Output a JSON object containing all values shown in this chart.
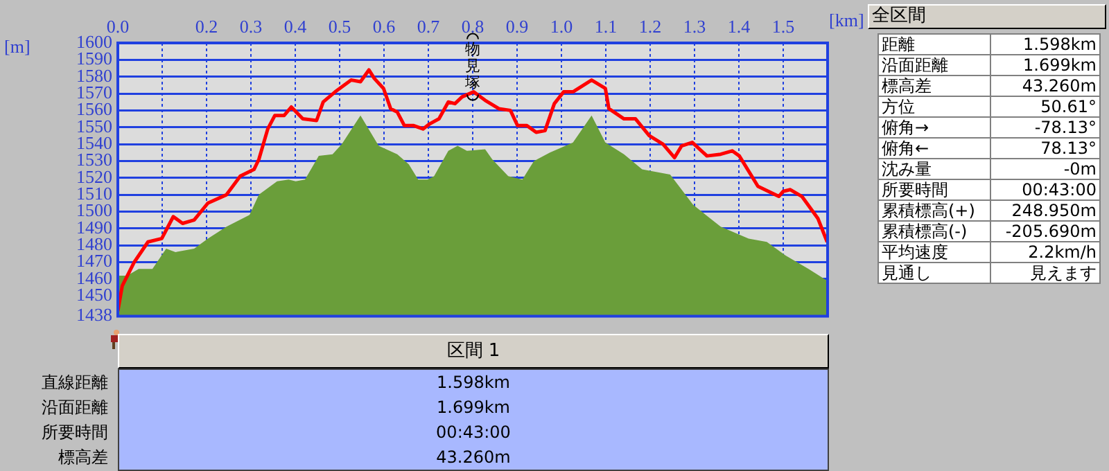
{
  "chart_data": [
    {
      "type": "line",
      "xlabel": "[km]",
      "ylabel": "[m]",
      "xlim": [
        0,
        1.6
      ],
      "xticks": [
        {
          "value": 0,
          "label": "0.0"
        },
        {
          "value": 0.1,
          "label": null
        },
        0.2,
        0.3,
        0.4,
        0.5,
        0.6,
        0.7,
        0.8,
        0.9,
        {
          "value": 1,
          "label": "1.0"
        },
        1.1,
        1.2,
        1.3,
        1.4,
        1.5
      ],
      "ylim": [
        1438,
        1600
      ],
      "yticks": [
        1438,
        1450,
        1460,
        1470,
        1480,
        1490,
        1500,
        1510,
        1520,
        1530,
        1540,
        1550,
        1560,
        1570,
        1580,
        1590,
        1600
      ],
      "grid": true,
      "legend": false,
      "line_style": "solid",
      "marker": "none",
      "annotations": [
        {
          "text": "物見塚",
          "x": 0.8,
          "y": 1571
        }
      ],
      "series": [
        {
          "type": "area",
          "color": "#6a9e3a",
          "x": [
            0,
            0.021,
            0.047,
            0.078,
            0.109,
            0.13,
            0.172,
            0.203,
            0.245,
            0.297,
            0.318,
            0.359,
            0.385,
            0.401,
            0.422,
            0.453,
            0.484,
            0.505,
            0.547,
            0.588,
            0.63,
            0.656,
            0.677,
            0.698,
            0.713,
            0.745,
            0.766,
            0.787,
            0.828,
            0.844,
            0.88,
            0.912,
            0.938,
            0.974,
            1.026,
            1.068,
            1.099,
            1.141,
            1.182,
            1.245,
            1.297,
            1.359,
            1.422,
            1.463,
            1.505,
            1.557,
            1.599
          ],
          "values": [
            1462,
            1462,
            1466,
            1466,
            1478,
            1476,
            1478,
            1484,
            1491,
            1498,
            1510,
            1518,
            1519,
            1518,
            1519,
            1533,
            1534,
            1540,
            1557,
            1539,
            1534,
            1528,
            1519,
            1519,
            1521,
            1536,
            1539,
            1536,
            1537,
            1531,
            1521,
            1519,
            1530,
            1535,
            1541,
            1557,
            1541,
            1534,
            1525,
            1522,
            1504,
            1491,
            1484,
            1482,
            1474,
            1466,
            1459
          ]
        },
        {
          "type": "line",
          "color": "#ff0000",
          "x": [
            0,
            0.01,
            0.037,
            0.068,
            0.099,
            0.125,
            0.146,
            0.172,
            0.203,
            0.245,
            0.276,
            0.307,
            0.318,
            0.338,
            0.354,
            0.375,
            0.391,
            0.417,
            0.448,
            0.463,
            0.49,
            0.526,
            0.547,
            0.566,
            0.578,
            0.599,
            0.615,
            0.63,
            0.646,
            0.667,
            0.688,
            0.703,
            0.724,
            0.745,
            0.76,
            0.776,
            0.802,
            0.828,
            0.859,
            0.885,
            0.901,
            0.922,
            0.943,
            0.963,
            0.984,
            1.005,
            1.026,
            1.068,
            1.099,
            1.107,
            1.141,
            1.167,
            1.198,
            1.229,
            1.255,
            1.271,
            1.295,
            1.328,
            1.359,
            1.385,
            1.401,
            1.443,
            1.49,
            1.5,
            1.516,
            1.542,
            1.578,
            1.599
          ],
          "values": [
            1441,
            1456,
            1470,
            1482,
            1484,
            1497,
            1493,
            1495,
            1505,
            1510,
            1521,
            1525,
            1531,
            1549,
            1557,
            1557,
            1562,
            1555,
            1554,
            1565,
            1571,
            1578,
            1577,
            1584,
            1579,
            1573,
            1561,
            1559,
            1551,
            1551,
            1549,
            1552,
            1555,
            1565,
            1564,
            1568,
            1571,
            1566,
            1561,
            1560,
            1551,
            1551,
            1547,
            1548,
            1564,
            1571,
            1571,
            1578,
            1573,
            1561,
            1555,
            1555,
            1545,
            1540,
            1532,
            1539,
            1541,
            1533,
            1534,
            1536,
            1533,
            1515,
            1509,
            1512,
            1513,
            1509,
            1496,
            1482
          ]
        }
      ]
    },
    {
      "type": "other",
      "title": "全区間",
      "annotations": [
        "距離",
        "1.598km",
        "沿面距離",
        "1.699km",
        "標高差",
        "43.260m",
        "方位",
        "50.61°",
        "俯角→",
        "-78.13°",
        "俯角←",
        "78.13°",
        "沈み量",
        "-0m",
        "所要時間",
        "00:43:00",
        "累積標高(+)",
        "248.950m",
        "累積標高(-)",
        "-205.690m",
        "平均速度",
        "2.2km/h",
        "見通し",
        "見えます"
      ]
    },
    {
      "type": "other",
      "title": "区間 1",
      "annotations": [
        "直線距離",
        "1.598km",
        "沿面距離",
        "1.699km",
        "所要時間",
        "00:43:00",
        "標高差",
        "43.260m"
      ]
    }
  ]
}
